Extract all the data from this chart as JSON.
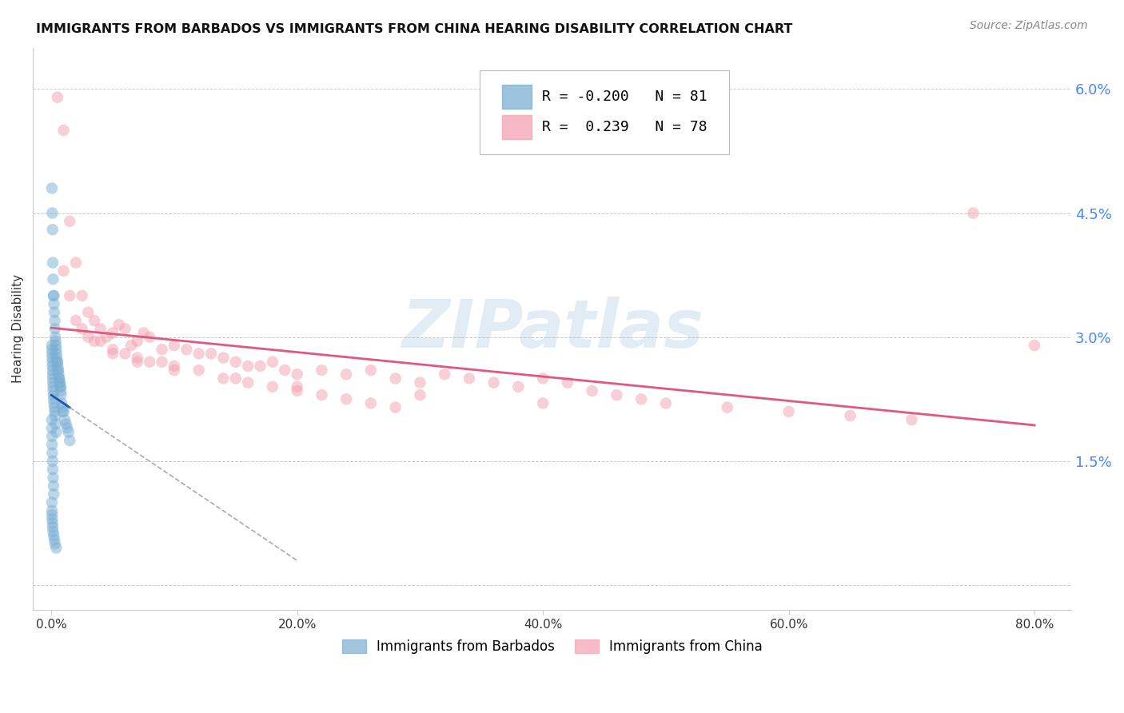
{
  "title": "IMMIGRANTS FROM BARBADOS VS IMMIGRANTS FROM CHINA HEARING DISABILITY CORRELATION CHART",
  "source": "Source: ZipAtlas.com",
  "ylabel_left": "Hearing Disability",
  "x_tick_labels": [
    "0.0%",
    "20.0%",
    "40.0%",
    "60.0%",
    "80.0%"
  ],
  "x_tick_values": [
    0.0,
    20.0,
    40.0,
    60.0,
    80.0
  ],
  "y_right_ticks": [
    0.0,
    1.5,
    3.0,
    4.5,
    6.0
  ],
  "y_right_tick_labels": [
    "",
    "1.5%",
    "3.0%",
    "4.5%",
    "6.0%"
  ],
  "ylim": [
    -0.3,
    6.5
  ],
  "xlim": [
    -1.5,
    83.0
  ],
  "barbados_R": -0.2,
  "barbados_N": 81,
  "china_R": 0.239,
  "china_N": 78,
  "color_barbados": "#7BAFD4",
  "color_china": "#F4A0B0",
  "color_trend_barbados": "#2255AA",
  "color_trend_china": "#E05880",
  "color_right_axis": "#4488FF",
  "watermark": "ZIPatlas",
  "barbados_x": [
    0.05,
    0.08,
    0.1,
    0.12,
    0.15,
    0.18,
    0.2,
    0.22,
    0.25,
    0.28,
    0.3,
    0.32,
    0.35,
    0.38,
    0.4,
    0.42,
    0.45,
    0.48,
    0.5,
    0.52,
    0.55,
    0.58,
    0.6,
    0.62,
    0.65,
    0.68,
    0.7,
    0.72,
    0.75,
    0.78,
    0.8,
    0.85,
    0.9,
    0.95,
    1.0,
    1.1,
    1.2,
    1.3,
    1.4,
    1.5,
    0.05,
    0.06,
    0.07,
    0.08,
    0.09,
    0.1,
    0.11,
    0.12,
    0.13,
    0.14,
    0.15,
    0.16,
    0.18,
    0.2,
    0.22,
    0.25,
    0.28,
    0.3,
    0.35,
    0.4,
    0.05,
    0.05,
    0.06,
    0.07,
    0.08,
    0.1,
    0.12,
    0.15,
    0.18,
    0.2,
    0.05,
    0.06,
    0.07,
    0.08,
    0.1,
    0.12,
    0.15,
    0.2,
    0.25,
    0.3,
    0.4
  ],
  "barbados_y": [
    4.8,
    4.5,
    4.3,
    3.9,
    3.7,
    3.5,
    3.5,
    3.4,
    3.3,
    3.2,
    3.1,
    3.0,
    2.95,
    2.9,
    2.85,
    2.8,
    2.75,
    2.7,
    2.7,
    2.65,
    2.6,
    2.6,
    2.55,
    2.5,
    2.5,
    2.45,
    2.45,
    2.4,
    2.4,
    2.35,
    2.3,
    2.2,
    2.15,
    2.1,
    2.1,
    2.0,
    1.95,
    1.9,
    1.85,
    1.75,
    2.9,
    2.85,
    2.8,
    2.75,
    2.7,
    2.65,
    2.6,
    2.55,
    2.5,
    2.45,
    2.4,
    2.35,
    2.3,
    2.25,
    2.2,
    2.15,
    2.1,
    2.05,
    1.95,
    1.85,
    2.0,
    1.9,
    1.8,
    1.7,
    1.6,
    1.5,
    1.4,
    1.3,
    1.2,
    1.1,
    1.0,
    0.9,
    0.85,
    0.8,
    0.75,
    0.7,
    0.65,
    0.6,
    0.55,
    0.5,
    0.45
  ],
  "china_x": [
    0.5,
    1.0,
    1.5,
    2.0,
    2.5,
    3.0,
    3.5,
    4.0,
    4.5,
    5.0,
    5.5,
    6.0,
    6.5,
    7.0,
    7.5,
    8.0,
    9.0,
    10.0,
    11.0,
    12.0,
    13.0,
    14.0,
    15.0,
    16.0,
    17.0,
    18.0,
    19.0,
    20.0,
    22.0,
    24.0,
    26.0,
    28.0,
    30.0,
    32.0,
    34.0,
    36.0,
    38.0,
    40.0,
    42.0,
    44.0,
    46.0,
    48.0,
    50.0,
    55.0,
    60.0,
    65.0,
    70.0,
    75.0,
    80.0,
    1.0,
    2.0,
    3.0,
    4.0,
    5.0,
    6.0,
    7.0,
    8.0,
    9.0,
    10.0,
    12.0,
    14.0,
    16.0,
    18.0,
    20.0,
    22.0,
    24.0,
    26.0,
    28.0,
    1.5,
    2.5,
    3.5,
    5.0,
    7.0,
    10.0,
    15.0,
    20.0,
    30.0,
    40.0
  ],
  "china_y": [
    5.9,
    5.5,
    4.4,
    3.9,
    3.5,
    3.3,
    3.2,
    3.1,
    3.0,
    3.05,
    3.15,
    3.1,
    2.9,
    2.95,
    3.05,
    3.0,
    2.85,
    2.9,
    2.85,
    2.8,
    2.8,
    2.75,
    2.7,
    2.65,
    2.65,
    2.7,
    2.6,
    2.55,
    2.6,
    2.55,
    2.6,
    2.5,
    2.45,
    2.55,
    2.5,
    2.45,
    2.4,
    2.5,
    2.45,
    2.35,
    2.3,
    2.25,
    2.2,
    2.15,
    2.1,
    2.05,
    2.0,
    4.5,
    2.9,
    3.8,
    3.2,
    3.0,
    2.95,
    2.85,
    2.8,
    2.75,
    2.7,
    2.7,
    2.65,
    2.6,
    2.5,
    2.45,
    2.4,
    2.35,
    2.3,
    2.25,
    2.2,
    2.15,
    3.5,
    3.1,
    2.95,
    2.8,
    2.7,
    2.6,
    2.5,
    2.4,
    2.3,
    2.2
  ]
}
